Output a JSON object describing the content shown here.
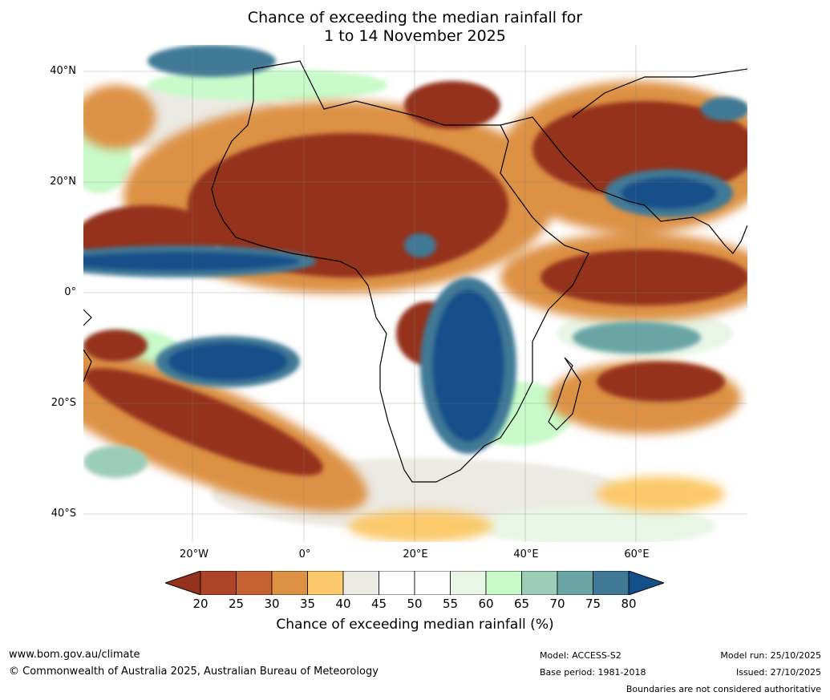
{
  "title_line1": "Chance of exceeding the median rainfall for",
  "title_line2": "1 to 14 November 2025",
  "lat_labels": [
    "40°N",
    "20°N",
    "0°",
    "20°S",
    "40°S"
  ],
  "lon_labels": [
    "20°W",
    "0°",
    "20°E",
    "40°E",
    "60°E"
  ],
  "colorbar": {
    "label": "Chance of exceeding median rainfall (%)",
    "ticks": [
      "20",
      "25",
      "30",
      "35",
      "40",
      "45",
      "50",
      "55",
      "60",
      "65",
      "70",
      "75",
      "80"
    ],
    "colors": [
      "#94321e",
      "#ad4428",
      "#c56133",
      "#dd9145",
      "#fbc96b",
      "#eceae4",
      "#ffffff",
      "#ffffff",
      "#e9f6e7",
      "#c8fbc9",
      "#9bcdb8",
      "#6aa5a6",
      "#407996",
      "#13508a"
    ]
  },
  "footer": {
    "url": "www.bom.gov.au/climate",
    "copyright": "© Commonwealth of Australia 2025, Australian Bureau of Meteorology",
    "model": "Model: ACCESS-S2",
    "base_period": "Base period: 1981-2018",
    "model_run": "Model run: 25/10/2025",
    "issued": "Issued: 27/10/2025",
    "disclaimer": "Boundaries are not considered authoritative"
  }
}
